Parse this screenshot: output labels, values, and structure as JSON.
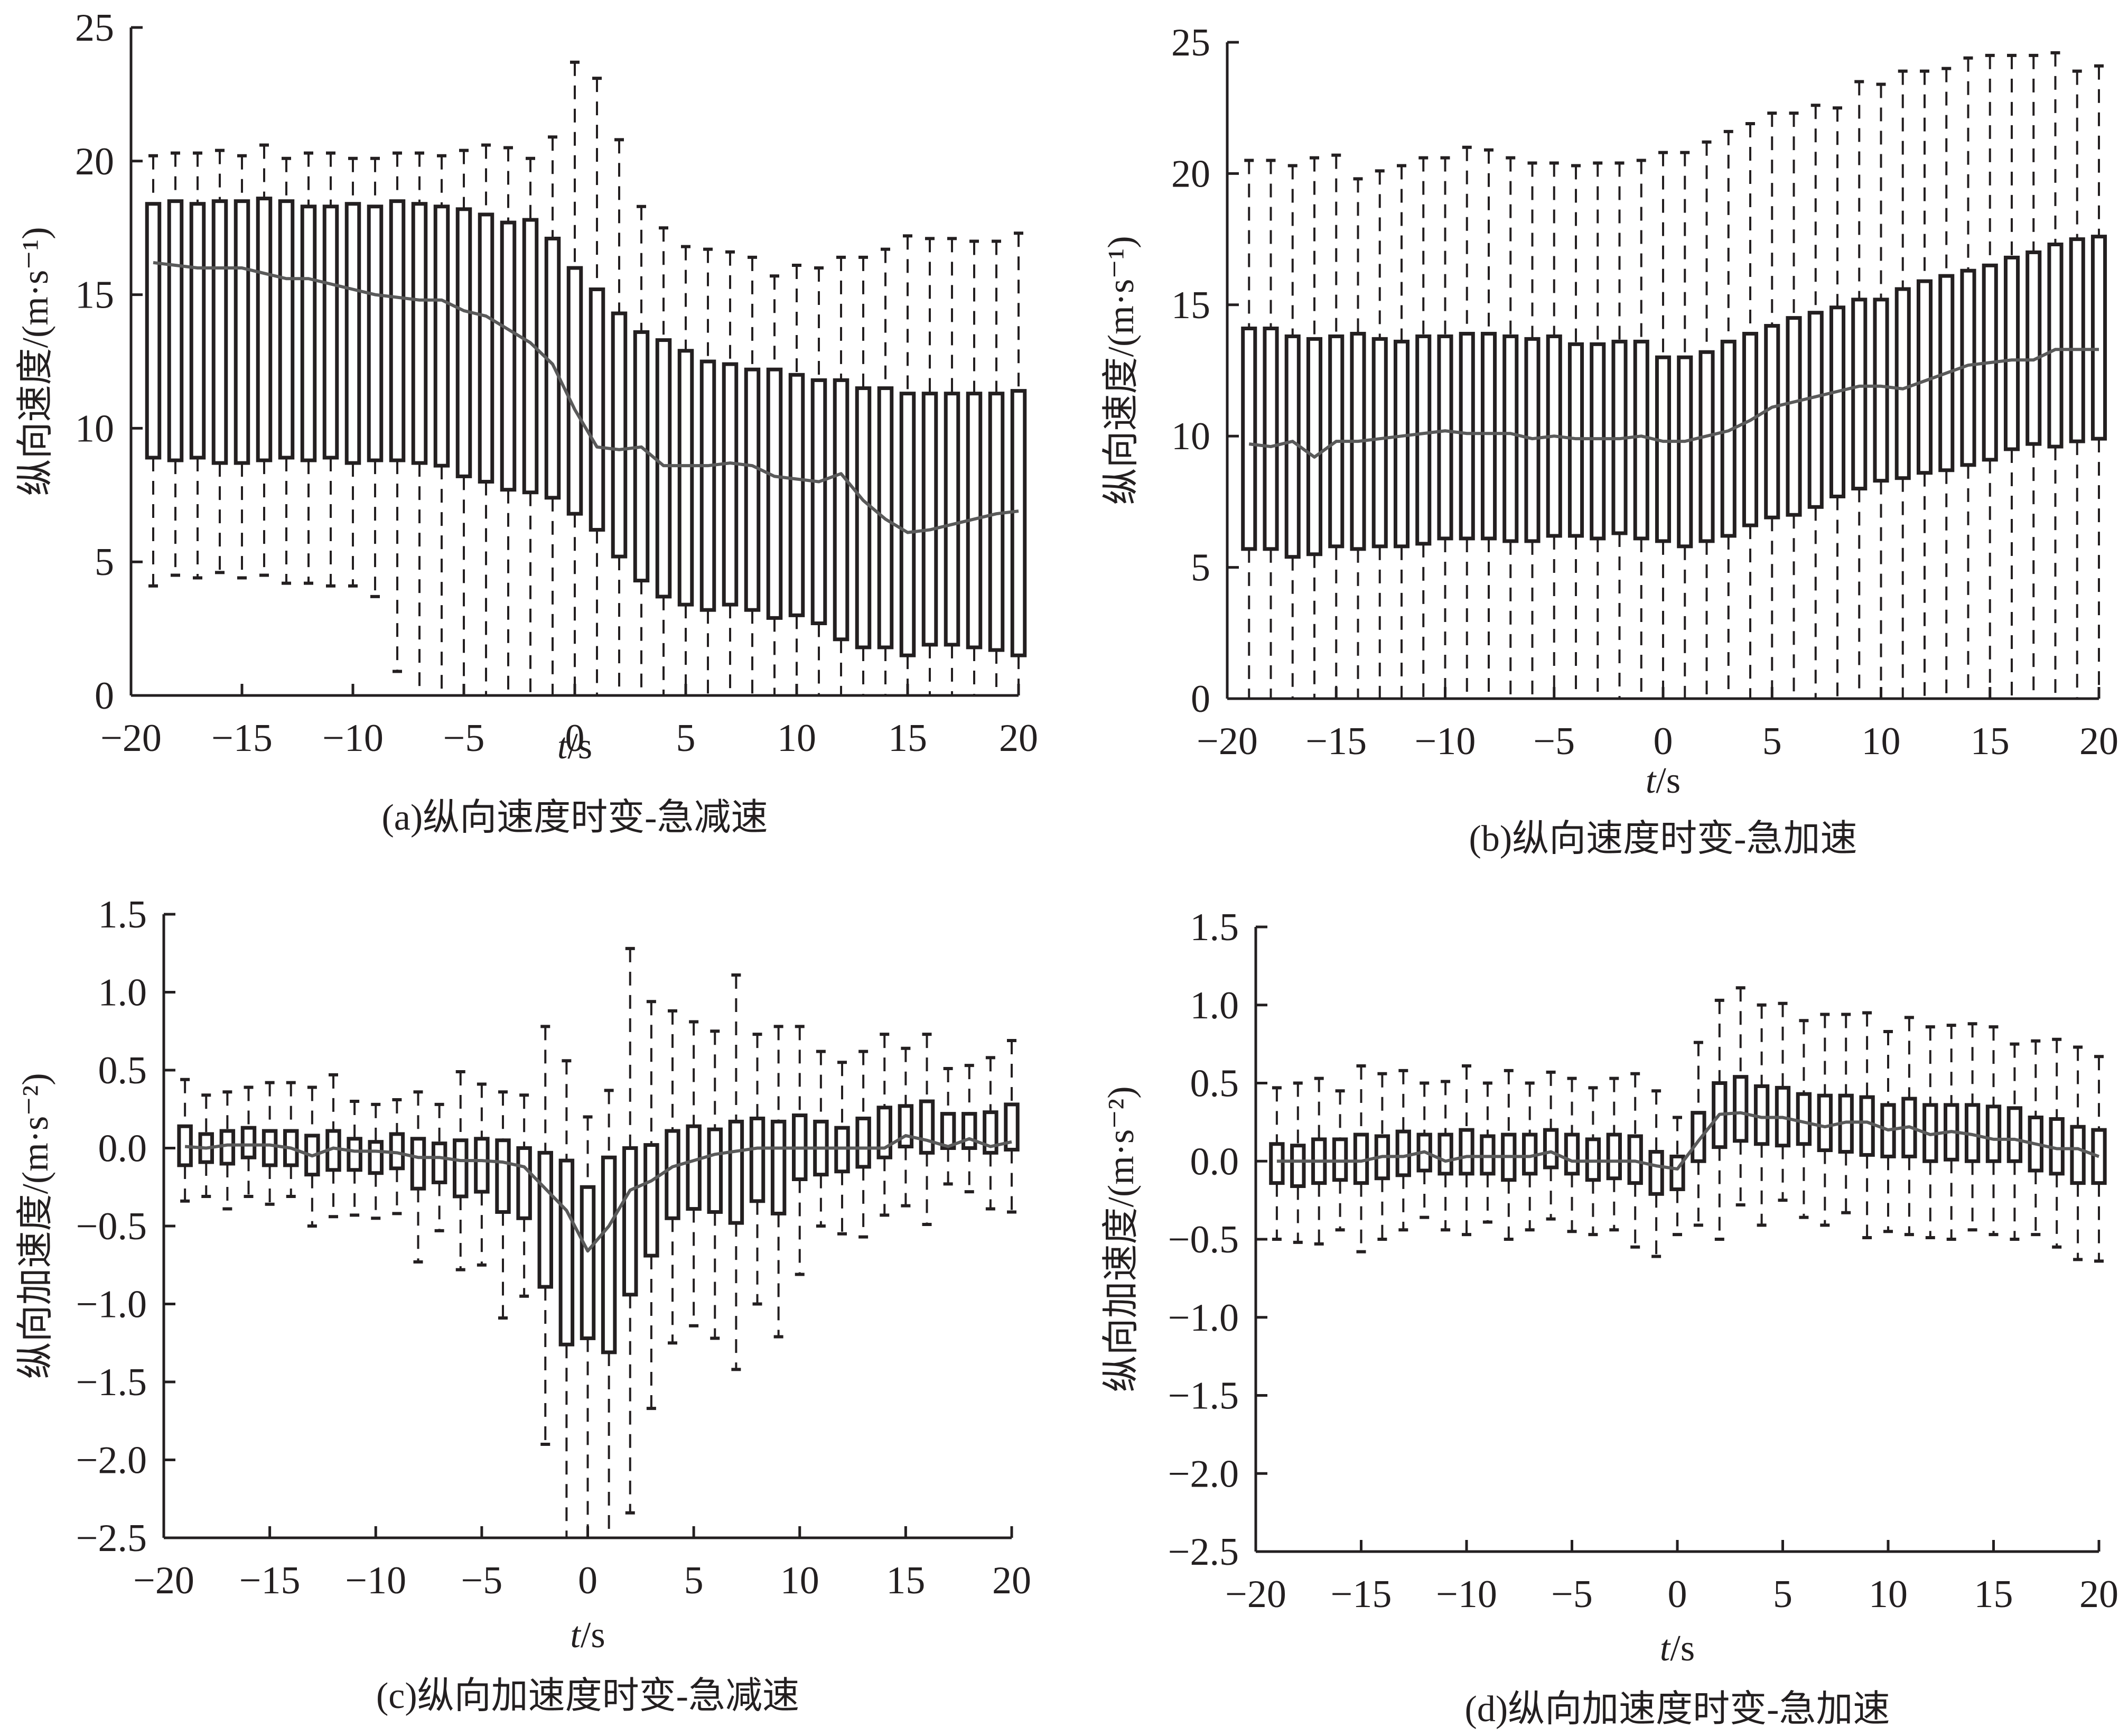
{
  "chart_data": [
    {
      "id": "a",
      "type": "box",
      "title": "(a)纵向速度时变-急减速",
      "xlabel": "t/s",
      "xlabel_italic": "t",
      "xlabel_rest": "/s",
      "ylabel": "纵向速度/(m·s⁻¹)",
      "xlim": [
        -20,
        20
      ],
      "ylim": [
        0,
        25
      ],
      "xticks": [
        -20,
        -15,
        -10,
        -5,
        0,
        5,
        10,
        15,
        20
      ],
      "xtick_labels": [
        "−20",
        "−15",
        "−10",
        "−5",
        "0",
        "5",
        "10",
        "15",
        "20"
      ],
      "yticks": [
        0,
        5,
        10,
        15,
        20,
        25
      ],
      "ytick_labels": [
        "0",
        "5",
        "10",
        "15",
        "20",
        "25"
      ],
      "grid": false,
      "x": [
        -19,
        -18,
        -17,
        -16,
        -15,
        -14,
        -13,
        -12,
        -11,
        -10,
        -9,
        -8,
        -7,
        -6,
        -5,
        -4,
        -3,
        -2,
        -1,
        0,
        1,
        2,
        3,
        4,
        5,
        6,
        7,
        8,
        9,
        10,
        11,
        12,
        13,
        14,
        15,
        16,
        17,
        18,
        19,
        20
      ],
      "whisker_high": [
        20.2,
        20.3,
        20.3,
        20.4,
        20.2,
        20.6,
        20.1,
        20.3,
        20.3,
        20.1,
        20.1,
        20.3,
        20.3,
        20.2,
        20.4,
        20.6,
        20.5,
        20.1,
        20.9,
        23.7,
        23.1,
        20.8,
        18.3,
        17.5,
        16.8,
        16.7,
        16.6,
        16.4,
        15.7,
        16.1,
        16.0,
        16.4,
        16.4,
        16.7,
        17.2,
        17.1,
        17.1,
        17.0,
        17.0,
        17.3
      ],
      "q3": [
        18.4,
        18.5,
        18.4,
        18.5,
        18.5,
        18.6,
        18.5,
        18.3,
        18.3,
        18.4,
        18.3,
        18.5,
        18.4,
        18.3,
        18.2,
        18.0,
        17.7,
        17.8,
        17.1,
        16.0,
        15.2,
        14.3,
        13.6,
        13.3,
        12.9,
        12.5,
        12.4,
        12.2,
        12.2,
        12.0,
        11.8,
        11.8,
        11.5,
        11.5,
        11.3,
        11.3,
        11.3,
        11.3,
        11.3,
        11.4
      ],
      "q1": [
        8.9,
        8.8,
        8.9,
        8.7,
        8.7,
        8.8,
        8.9,
        8.8,
        8.9,
        8.7,
        8.8,
        8.8,
        8.7,
        8.6,
        8.2,
        8.0,
        7.7,
        7.6,
        7.4,
        6.8,
        6.2,
        5.2,
        4.3,
        3.7,
        3.4,
        3.2,
        3.4,
        3.2,
        2.9,
        3.0,
        2.7,
        2.1,
        1.8,
        1.8,
        1.5,
        1.9,
        1.9,
        1.8,
        1.7,
        1.5
      ],
      "whisker_low": [
        4.1,
        4.5,
        4.4,
        4.6,
        4.4,
        4.5,
        4.2,
        4.2,
        4.1,
        4.1,
        3.7,
        0.9,
        0,
        0,
        0,
        0,
        0,
        0,
        0,
        0,
        0,
        0,
        0,
        0,
        0,
        0,
        0,
        0,
        0,
        0,
        0,
        0,
        0,
        0,
        0,
        0,
        0,
        0,
        0,
        0
      ],
      "median_line": [
        16.2,
        16.1,
        16.0,
        16.0,
        16.0,
        15.8,
        15.6,
        15.6,
        15.4,
        15.2,
        15.0,
        14.9,
        14.8,
        14.8,
        14.4,
        14.2,
        13.7,
        13.2,
        12.4,
        10.7,
        9.3,
        9.2,
        9.3,
        8.6,
        8.6,
        8.6,
        8.7,
        8.6,
        8.2,
        8.1,
        8.0,
        8.3,
        7.3,
        6.6,
        6.1,
        6.2,
        6.4,
        6.6,
        6.8,
        6.9
      ]
    },
    {
      "id": "b",
      "type": "box",
      "title": "(b)纵向速度时变-急加速",
      "xlabel": "t/s",
      "xlabel_italic": "t",
      "xlabel_rest": "/s",
      "ylabel": "纵向速度/(m·s⁻¹)",
      "xlim": [
        -20,
        20
      ],
      "ylim": [
        0,
        25
      ],
      "xticks": [
        -20,
        -15,
        -10,
        -5,
        0,
        5,
        10,
        15,
        20
      ],
      "xtick_labels": [
        "−20",
        "−15",
        "−10",
        "−5",
        "0",
        "5",
        "10",
        "15",
        "20"
      ],
      "yticks": [
        0,
        5,
        10,
        15,
        20,
        25
      ],
      "ytick_labels": [
        "0",
        "5",
        "10",
        "15",
        "20",
        "25"
      ],
      "grid": false,
      "x": [
        -19,
        -18,
        -17,
        -16,
        -15,
        -14,
        -13,
        -12,
        -11,
        -10,
        -9,
        -8,
        -7,
        -6,
        -5,
        -4,
        -3,
        -2,
        -1,
        0,
        1,
        2,
        3,
        4,
        5,
        6,
        7,
        8,
        9,
        10,
        11,
        12,
        13,
        14,
        15,
        16,
        17,
        18,
        19,
        20
      ],
      "whisker_high": [
        20.5,
        20.5,
        20.3,
        20.6,
        20.7,
        19.8,
        20.1,
        20.3,
        20.6,
        20.6,
        21.0,
        20.9,
        20.6,
        20.4,
        20.4,
        20.3,
        20.4,
        20.4,
        20.5,
        20.8,
        20.8,
        21.2,
        21.6,
        21.9,
        22.3,
        22.3,
        22.6,
        22.5,
        23.5,
        23.4,
        23.9,
        23.9,
        24.0,
        24.4,
        24.5,
        24.5,
        24.5,
        24.6,
        23.9,
        24.1
      ],
      "q3": [
        14.1,
        14.1,
        13.8,
        13.7,
        13.8,
        13.9,
        13.7,
        13.6,
        13.8,
        13.8,
        13.9,
        13.9,
        13.8,
        13.7,
        13.8,
        13.5,
        13.5,
        13.6,
        13.6,
        13.0,
        13.0,
        13.2,
        13.6,
        13.9,
        14.2,
        14.5,
        14.7,
        14.9,
        15.2,
        15.2,
        15.6,
        15.9,
        16.1,
        16.3,
        16.5,
        16.8,
        17.0,
        17.3,
        17.5,
        17.6
      ],
      "q1": [
        5.7,
        5.7,
        5.4,
        5.5,
        5.8,
        5.7,
        5.8,
        5.8,
        5.9,
        6.1,
        6.1,
        6.1,
        6.0,
        6.0,
        6.2,
        6.2,
        6.1,
        6.3,
        6.1,
        6.0,
        5.8,
        6.0,
        6.2,
        6.6,
        6.9,
        7.0,
        7.3,
        7.7,
        8.0,
        8.3,
        8.4,
        8.6,
        8.7,
        8.9,
        9.1,
        9.5,
        9.7,
        9.6,
        9.8,
        9.9
      ],
      "whisker_low": [
        0,
        0,
        0,
        0,
        0,
        0,
        0,
        0,
        0,
        0,
        0,
        0,
        0,
        0,
        0,
        0,
        0,
        0,
        0,
        0,
        0,
        0,
        0,
        0,
        0,
        0,
        0,
        0,
        0,
        0,
        0,
        0,
        0,
        0,
        0,
        0,
        0,
        0,
        0,
        0
      ],
      "median_line": [
        9.7,
        9.6,
        9.8,
        9.2,
        9.8,
        9.8,
        9.9,
        10.0,
        10.1,
        10.2,
        10.1,
        10.1,
        10.1,
        9.9,
        10.0,
        9.9,
        9.9,
        9.9,
        10.0,
        9.8,
        9.8,
        10.0,
        10.2,
        10.6,
        11.1,
        11.3,
        11.5,
        11.7,
        11.9,
        11.9,
        11.8,
        12.1,
        12.4,
        12.7,
        12.8,
        12.9,
        12.9,
        13.3,
        13.3,
        13.3
      ]
    },
    {
      "id": "c",
      "type": "box",
      "title": "(c)纵向加速度时变-急减速",
      "xlabel": "t/s",
      "xlabel_italic": "t",
      "xlabel_rest": "/s",
      "ylabel": "纵向加速度/(m·s⁻²)",
      "xlim": [
        -20,
        20
      ],
      "ylim": [
        -2.5,
        1.5
      ],
      "xticks": [
        -20,
        -15,
        -10,
        -5,
        0,
        5,
        10,
        15,
        20
      ],
      "xtick_labels": [
        "−20",
        "−15",
        "−10",
        "−5",
        "0",
        "5",
        "10",
        "15",
        "20"
      ],
      "yticks": [
        -2.5,
        -2.0,
        -1.5,
        -1.0,
        -0.5,
        0.0,
        0.5,
        1.0,
        1.5
      ],
      "ytick_labels": [
        "−2.5",
        "−2.0",
        "−1.5",
        "−1.0",
        "−0.5",
        "0.0",
        "0.5",
        "1.0",
        "1.5"
      ],
      "grid": false,
      "x": [
        -19,
        -18,
        -17,
        -16,
        -15,
        -14,
        -13,
        -12,
        -11,
        -10,
        -9,
        -8,
        -7,
        -6,
        -5,
        -4,
        -3,
        -2,
        -1,
        0,
        1,
        2,
        3,
        4,
        5,
        6,
        7,
        8,
        9,
        10,
        11,
        12,
        13,
        14,
        15,
        16,
        17,
        18,
        19,
        20
      ],
      "whisker_high": [
        0.44,
        0.34,
        0.36,
        0.39,
        0.42,
        0.42,
        0.39,
        0.47,
        0.3,
        0.28,
        0.31,
        0.36,
        0.28,
        0.49,
        0.41,
        0.36,
        0.34,
        0.78,
        0.56,
        0.2,
        0.37,
        1.28,
        0.94,
        0.88,
        0.81,
        0.75,
        1.11,
        0.73,
        0.78,
        0.78,
        0.62,
        0.55,
        0.62,
        0.73,
        0.64,
        0.73,
        0.51,
        0.53,
        0.58,
        0.69
      ],
      "q3": [
        0.14,
        0.09,
        0.11,
        0.13,
        0.11,
        0.11,
        0.08,
        0.11,
        0.06,
        0.04,
        0.09,
        0.06,
        0.03,
        0.05,
        0.06,
        0.05,
        0.0,
        -0.03,
        -0.08,
        -0.25,
        -0.06,
        0.0,
        0.02,
        0.11,
        0.14,
        0.12,
        0.17,
        0.19,
        0.17,
        0.21,
        0.17,
        0.13,
        0.19,
        0.26,
        0.27,
        0.3,
        0.22,
        0.22,
        0.23,
        0.28
      ],
      "q1": [
        -0.11,
        -0.09,
        -0.1,
        -0.06,
        -0.11,
        -0.11,
        -0.17,
        -0.14,
        -0.14,
        -0.16,
        -0.13,
        -0.26,
        -0.22,
        -0.31,
        -0.28,
        -0.41,
        -0.45,
        -0.89,
        -1.26,
        -1.22,
        -1.31,
        -0.94,
        -0.69,
        -0.45,
        -0.39,
        -0.41,
        -0.48,
        -0.34,
        -0.42,
        -0.2,
        -0.17,
        -0.15,
        -0.12,
        -0.06,
        0.01,
        -0.03,
        0.0,
        0.0,
        -0.03,
        -0.01
      ],
      "whisker_low": [
        -0.34,
        -0.31,
        -0.39,
        -0.31,
        -0.36,
        -0.31,
        -0.5,
        -0.44,
        -0.43,
        -0.45,
        -0.42,
        -0.73,
        -0.53,
        -0.78,
        -0.75,
        -1.09,
        -0.95,
        -1.9,
        -2.5,
        -2.5,
        -2.5,
        -2.34,
        -1.67,
        -1.25,
        -1.14,
        -1.22,
        -1.42,
        -1.0,
        -1.21,
        -0.81,
        -0.5,
        -0.55,
        -0.57,
        -0.43,
        -0.37,
        -0.49,
        -0.23,
        -0.28,
        -0.39,
        -0.41
      ],
      "median_line": [
        0.01,
        0.0,
        0.02,
        0.02,
        0.02,
        0.0,
        -0.05,
        0.0,
        -0.02,
        -0.02,
        -0.03,
        -0.06,
        -0.06,
        -0.08,
        -0.08,
        -0.09,
        -0.12,
        -0.26,
        -0.4,
        -0.66,
        -0.5,
        -0.27,
        -0.21,
        -0.12,
        -0.08,
        -0.04,
        -0.02,
        0.0,
        0.0,
        0.0,
        0.0,
        0.0,
        0.0,
        0.0,
        0.08,
        0.05,
        0.01,
        0.06,
        0.01,
        0.04
      ]
    },
    {
      "id": "d",
      "type": "box",
      "title": "(d)纵向加速度时变-急加速",
      "xlabel": "t/s",
      "xlabel_italic": "t",
      "xlabel_rest": "/s",
      "ylabel": "纵向加速度/(m·s⁻²)",
      "xlim": [
        -20,
        20
      ],
      "ylim": [
        -2.5,
        1.5
      ],
      "xticks": [
        -20,
        -15,
        -10,
        -5,
        0,
        5,
        10,
        15,
        20
      ],
      "xtick_labels": [
        "−20",
        "−15",
        "−10",
        "−5",
        "0",
        "5",
        "10",
        "15",
        "20"
      ],
      "yticks": [
        -2.5,
        -2.0,
        -1.5,
        -1.0,
        -0.5,
        0.0,
        0.5,
        1.0,
        1.5
      ],
      "ytick_labels": [
        "−2.5",
        "−2.0",
        "−1.5",
        "−1.0",
        "−0.5",
        "0.0",
        "0.5",
        "1.0",
        "1.5"
      ],
      "grid": false,
      "x": [
        -19,
        -18,
        -17,
        -16,
        -15,
        -14,
        -13,
        -12,
        -11,
        -10,
        -9,
        -8,
        -7,
        -6,
        -5,
        -4,
        -3,
        -2,
        -1,
        0,
        1,
        2,
        3,
        4,
        5,
        6,
        7,
        8,
        9,
        10,
        11,
        12,
        13,
        14,
        15,
        16,
        17,
        18,
        19,
        20
      ],
      "whisker_high": [
        0.47,
        0.5,
        0.53,
        0.45,
        0.61,
        0.56,
        0.58,
        0.5,
        0.51,
        0.61,
        0.5,
        0.58,
        0.5,
        0.57,
        0.53,
        0.47,
        0.53,
        0.56,
        0.45,
        0.28,
        0.76,
        1.03,
        1.11,
        1.0,
        1.01,
        0.9,
        0.94,
        0.94,
        0.95,
        0.83,
        0.92,
        0.86,
        0.87,
        0.88,
        0.86,
        0.75,
        0.77,
        0.78,
        0.73,
        0.67
      ],
      "q3": [
        0.11,
        0.1,
        0.14,
        0.14,
        0.17,
        0.16,
        0.19,
        0.17,
        0.17,
        0.2,
        0.16,
        0.17,
        0.17,
        0.2,
        0.17,
        0.14,
        0.17,
        0.16,
        0.06,
        0.03,
        0.31,
        0.5,
        0.54,
        0.48,
        0.47,
        0.43,
        0.42,
        0.42,
        0.41,
        0.36,
        0.4,
        0.36,
        0.36,
        0.36,
        0.35,
        0.34,
        0.28,
        0.27,
        0.22,
        0.2
      ],
      "q1": [
        -0.14,
        -0.16,
        -0.14,
        -0.12,
        -0.14,
        -0.11,
        -0.09,
        -0.06,
        -0.08,
        -0.08,
        -0.08,
        -0.12,
        -0.08,
        -0.04,
        -0.08,
        -0.12,
        -0.11,
        -0.14,
        -0.21,
        -0.18,
        0.0,
        0.09,
        0.13,
        0.11,
        0.1,
        0.11,
        0.07,
        0.06,
        0.04,
        0.03,
        0.03,
        0.0,
        0.01,
        0.0,
        0.0,
        0.0,
        -0.06,
        -0.08,
        -0.14,
        -0.14
      ],
      "whisker_low": [
        -0.5,
        -0.52,
        -0.53,
        -0.44,
        -0.58,
        -0.5,
        -0.44,
        -0.36,
        -0.44,
        -0.47,
        -0.39,
        -0.5,
        -0.44,
        -0.37,
        -0.45,
        -0.47,
        -0.44,
        -0.55,
        -0.61,
        -0.47,
        -0.41,
        -0.5,
        -0.28,
        -0.41,
        -0.25,
        -0.36,
        -0.41,
        -0.33,
        -0.49,
        -0.45,
        -0.47,
        -0.49,
        -0.5,
        -0.44,
        -0.47,
        -0.5,
        -0.47,
        -0.55,
        -0.63,
        -0.64
      ],
      "median_line": [
        0.0,
        0.0,
        0.0,
        0.0,
        0.0,
        0.03,
        0.03,
        0.06,
        0.0,
        0.03,
        0.03,
        0.03,
        0.03,
        0.06,
        0.0,
        0.0,
        0.0,
        0.0,
        -0.03,
        -0.05,
        0.13,
        0.3,
        0.31,
        0.28,
        0.28,
        0.25,
        0.22,
        0.25,
        0.25,
        0.2,
        0.22,
        0.17,
        0.19,
        0.17,
        0.14,
        0.14,
        0.11,
        0.08,
        0.08,
        0.03
      ]
    }
  ],
  "colors": {
    "box_stroke": "#231f20",
    "median_line": "#5a5a5a",
    "whisker": "#231f20",
    "axis": "#231f20",
    "background": "#ffffff"
  }
}
